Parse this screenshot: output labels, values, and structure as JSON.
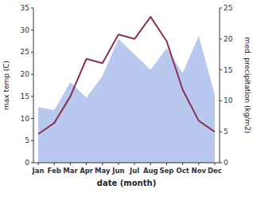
{
  "chart_data": {
    "type": "line",
    "xlabel": "date (month)",
    "ylabel": "max temp (C)",
    "y2label": "med. precipitation (kg/m2)",
    "categories": [
      "Jan",
      "Feb",
      "Mar",
      "Apr",
      "May",
      "Jun",
      "Jul",
      "Aug",
      "Sep",
      "Oct",
      "Nov",
      "Dec"
    ],
    "series": [
      {
        "type": "area",
        "axis": "y2",
        "color": "#b8c8ee",
        "values": [
          9.0,
          8.5,
          13.0,
          10.5,
          14.0,
          20.0,
          17.5,
          15.0,
          18.5,
          14.5,
          20.5,
          11.0
        ]
      },
      {
        "type": "line",
        "color": "#8b3050",
        "values": [
          6.5,
          9.0,
          15.0,
          23.5,
          22.5,
          29.0,
          28.0,
          33.0,
          27.5,
          16.5,
          9.5,
          7.0
        ]
      }
    ],
    "ylim": [
      0,
      35
    ],
    "yticks": [
      0,
      5,
      10,
      15,
      20,
      25,
      30,
      35
    ],
    "y2lim": [
      0,
      25
    ],
    "y2ticks": [
      0,
      5,
      10,
      15,
      20,
      25
    ],
    "grid": false
  }
}
